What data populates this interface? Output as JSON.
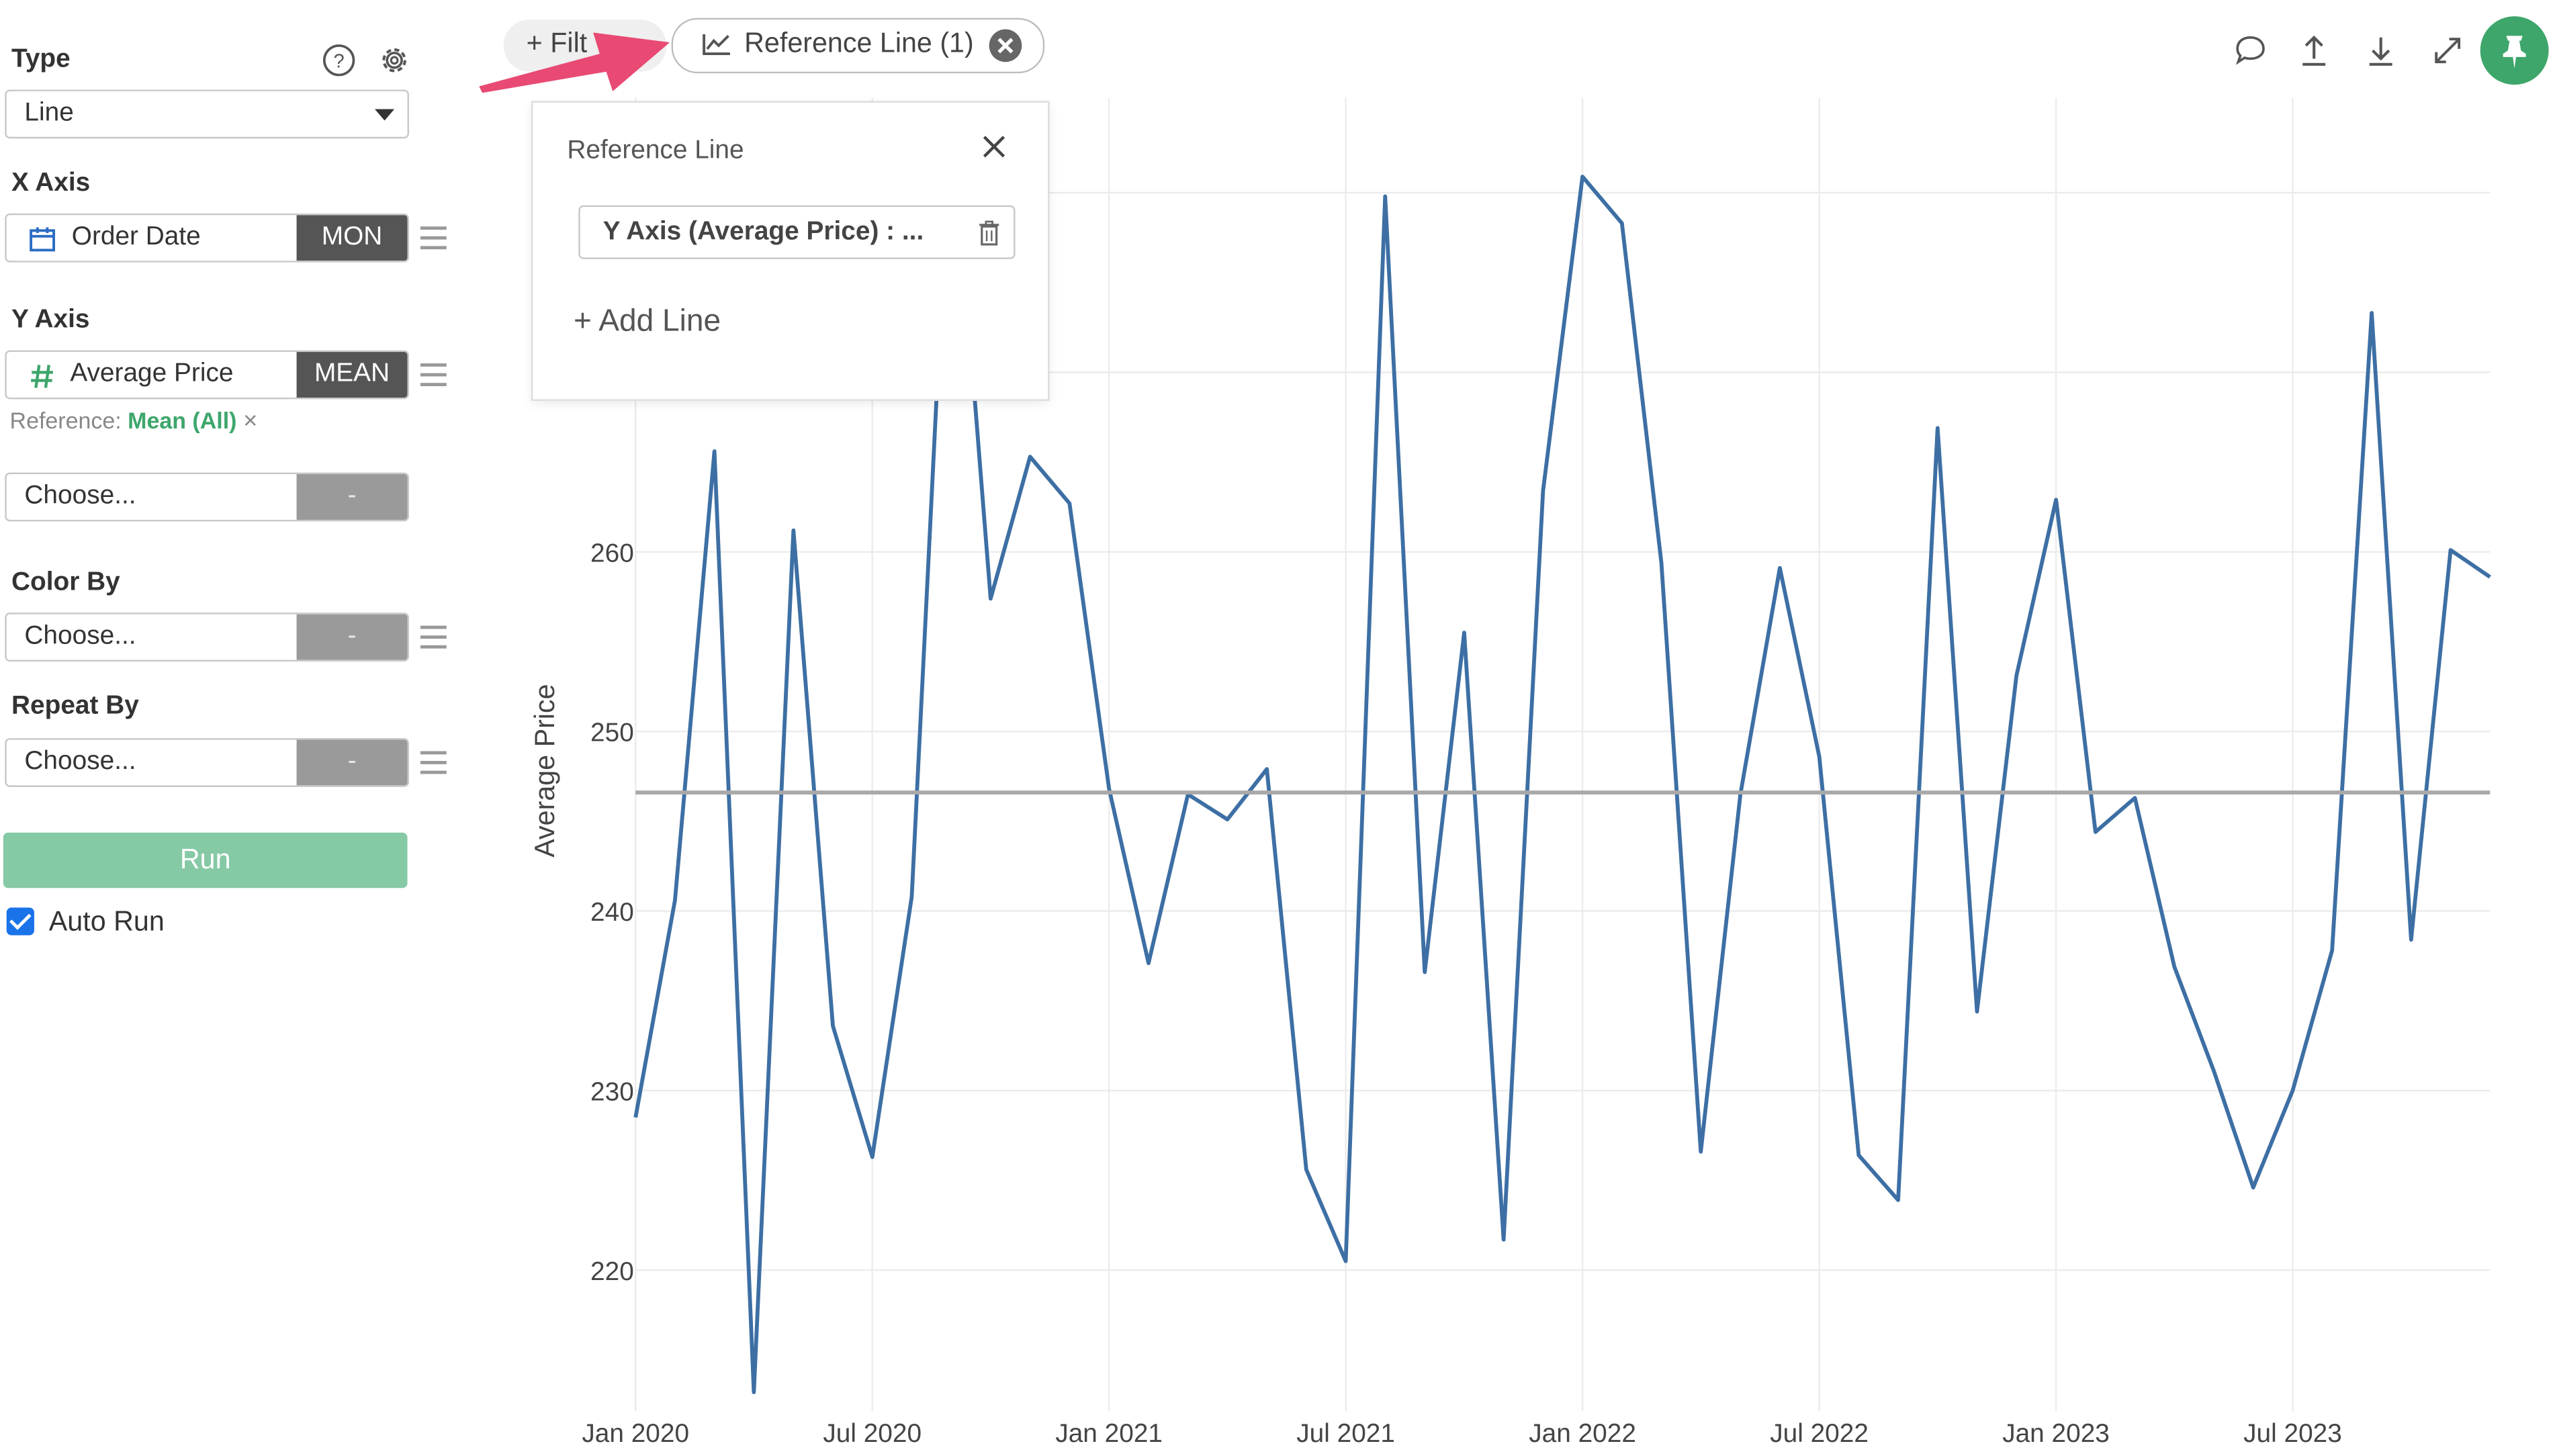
{
  "panel": {
    "type_label": "Type",
    "type_value": "Line",
    "x_axis_label": "X Axis",
    "x_field": "Order Date",
    "x_agg": "MON",
    "y_axis_label": "Y Axis",
    "y_field": "Average Price",
    "y_agg": "MEAN",
    "reference_prefix": "Reference:",
    "reference_value": "Mean (All)",
    "reference_remove": "×",
    "y2_placeholder": "Choose...",
    "y2_agg": "-",
    "color_by_label": "Color By",
    "color_by_placeholder": "Choose...",
    "color_by_agg": "-",
    "repeat_by_label": "Repeat By",
    "repeat_by_placeholder": "Choose...",
    "repeat_by_agg": "-",
    "run_label": "Run",
    "auto_run_label": "Auto Run",
    "auto_run_checked": true
  },
  "toolbar": {
    "filter_label": "+ Filt",
    "reference_pill_label": "Reference Line (1)",
    "icons": [
      "comment-icon",
      "upload-icon",
      "download-icon",
      "expand-icon",
      "pin-icon"
    ]
  },
  "popover": {
    "title": "Reference Line",
    "line_item_label": "Y Axis (Average Price) : ...",
    "add_line_label": "+ Add Line"
  },
  "colors": {
    "accent_green": "#3ea66b",
    "line_blue": "#3d6fa4",
    "reference_gray": "#a9a9a9",
    "annotation_arrow": "#e84a74"
  },
  "chart_data": {
    "type": "line",
    "title": "",
    "xlabel": "",
    "ylabel": "Average Price",
    "x_tick_labels": [
      "Jan 2020",
      "Jul 2020",
      "Jan 2021",
      "Jul 2021",
      "Jan 2022",
      "Jul 2022",
      "Jan 2023",
      "Jul 2023"
    ],
    "y_ticks": [
      220,
      230,
      240,
      250,
      260
    ],
    "ylim": [
      213,
      283
    ],
    "x": [
      "2020-01",
      "2020-02",
      "2020-03",
      "2020-04",
      "2020-05",
      "2020-06",
      "2020-07",
      "2020-08",
      "2020-09",
      "2020-10",
      "2020-11",
      "2020-12",
      "2021-01",
      "2021-02",
      "2021-03",
      "2021-04",
      "2021-05",
      "2021-06",
      "2021-07",
      "2021-08",
      "2021-09",
      "2021-10",
      "2021-11",
      "2021-12",
      "2022-01",
      "2022-02",
      "2022-03",
      "2022-04",
      "2022-05",
      "2022-06",
      "2022-07",
      "2022-08",
      "2022-09",
      "2022-10",
      "2022-11",
      "2022-12",
      "2023-01",
      "2023-02",
      "2023-03",
      "2023-04",
      "2023-05",
      "2023-06",
      "2023-07",
      "2023-08",
      "2023-09",
      "2023-10",
      "2023-11",
      "2023-12"
    ],
    "series": [
      {
        "values": [
          228.5,
          240.6,
          265.6,
          213.2,
          261.2,
          233.6,
          226.3,
          240.8,
          285.0,
          257.4,
          265.3,
          262.7,
          246.8,
          237.1,
          246.5,
          245.1,
          247.9,
          225.6,
          220.5,
          279.8,
          236.6,
          255.5,
          221.7,
          263.4,
          280.9,
          278.3,
          259.4,
          226.6,
          246.5,
          259.1,
          248.6,
          226.4,
          223.9,
          266.9,
          234.4,
          253.1,
          262.9,
          244.4,
          246.3,
          236.9,
          231.1,
          224.6,
          230.0,
          237.8,
          273.3,
          238.4,
          260.1,
          258.6
        ]
      }
    ],
    "reference_line": {
      "label": "Mean (All)",
      "value": 246.6
    },
    "grid": true,
    "legend": "none"
  }
}
